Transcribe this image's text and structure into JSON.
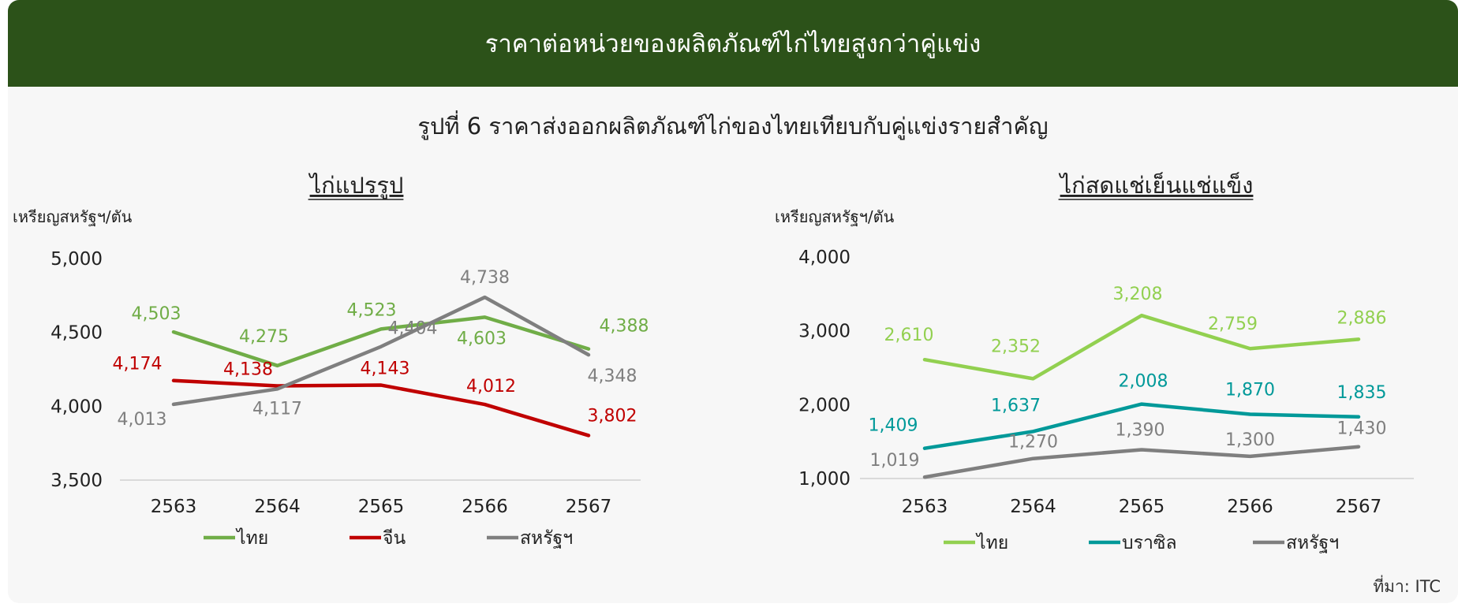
{
  "header": {
    "title": "ราคาต่อหน่วยของผลิตภัณฑ์ไก่ไทยสูงกว่าคู่แข่ง"
  },
  "figure_title": "รูปที่ 6 ราคาส่งออกผลิตภัณฑ์ไก่ของไทยเทียบกับคู่แข่งรายสำคัญ",
  "source": "ที่มา: ITC",
  "chart_data": [
    {
      "type": "line",
      "title": "ไก่แปรรูป",
      "ylabel": "เหรียญสหรัฐฯ/ตัน",
      "categories": [
        "2563",
        "2564",
        "2565",
        "2566",
        "2567"
      ],
      "ylim": [
        3500,
        5000
      ],
      "yticks": [
        3500,
        4000,
        4500,
        5000
      ],
      "ytick_labels": [
        "3,500",
        "4,000",
        "4,500",
        "5,000"
      ],
      "grid": false,
      "legend_position": "bottom",
      "series": [
        {
          "name": "ไทย",
          "color": "#70ad47",
          "values": [
            4503,
            4275,
            4523,
            4603,
            4388
          ],
          "labels": [
            "4,503",
            "4,275",
            "4,523",
            "4,603",
            "4,388"
          ]
        },
        {
          "name": "จีน",
          "color": "#c00000",
          "values": [
            4174,
            4138,
            4143,
            4012,
            3802
          ],
          "labels": [
            "4,174",
            "4,138",
            "4,143",
            "4,012",
            "3,802"
          ]
        },
        {
          "name": "สหรัฐฯ",
          "color": "#7f7f7f",
          "values": [
            4013,
            4117,
            4404,
            4738,
            4348
          ],
          "labels": [
            "4,013",
            "4,117",
            "4,404",
            "4,738",
            "4,348"
          ]
        }
      ]
    },
    {
      "type": "line",
      "title": "ไก่สดแช่เย็นแช่แข็ง",
      "ylabel": "เหรียญสหรัฐฯ/ตัน",
      "categories": [
        "2563",
        "2564",
        "2565",
        "2566",
        "2567"
      ],
      "ylim": [
        1000,
        4000
      ],
      "yticks": [
        1000,
        2000,
        3000,
        4000
      ],
      "ytick_labels": [
        "1,000",
        "2,000",
        "3,000",
        "4,000"
      ],
      "grid": false,
      "legend_position": "bottom",
      "series": [
        {
          "name": "ไทย",
          "color": "#92d050",
          "values": [
            2610,
            2352,
            3208,
            2759,
            2886
          ],
          "labels": [
            "2,610",
            "2,352",
            "3,208",
            "2,759",
            "2,886"
          ]
        },
        {
          "name": "บราซิล",
          "color": "#009999",
          "values": [
            1409,
            1637,
            2008,
            1870,
            1835
          ],
          "labels": [
            "1,409",
            "1,637",
            "2,008",
            "1,870",
            "1,835"
          ]
        },
        {
          "name": "สหรัฐฯ",
          "color": "#7f7f7f",
          "values": [
            1019,
            1270,
            1390,
            1300,
            1430
          ],
          "labels": [
            "1,019",
            "1,270",
            "1,390",
            "1,300",
            "1,430"
          ]
        }
      ]
    }
  ]
}
